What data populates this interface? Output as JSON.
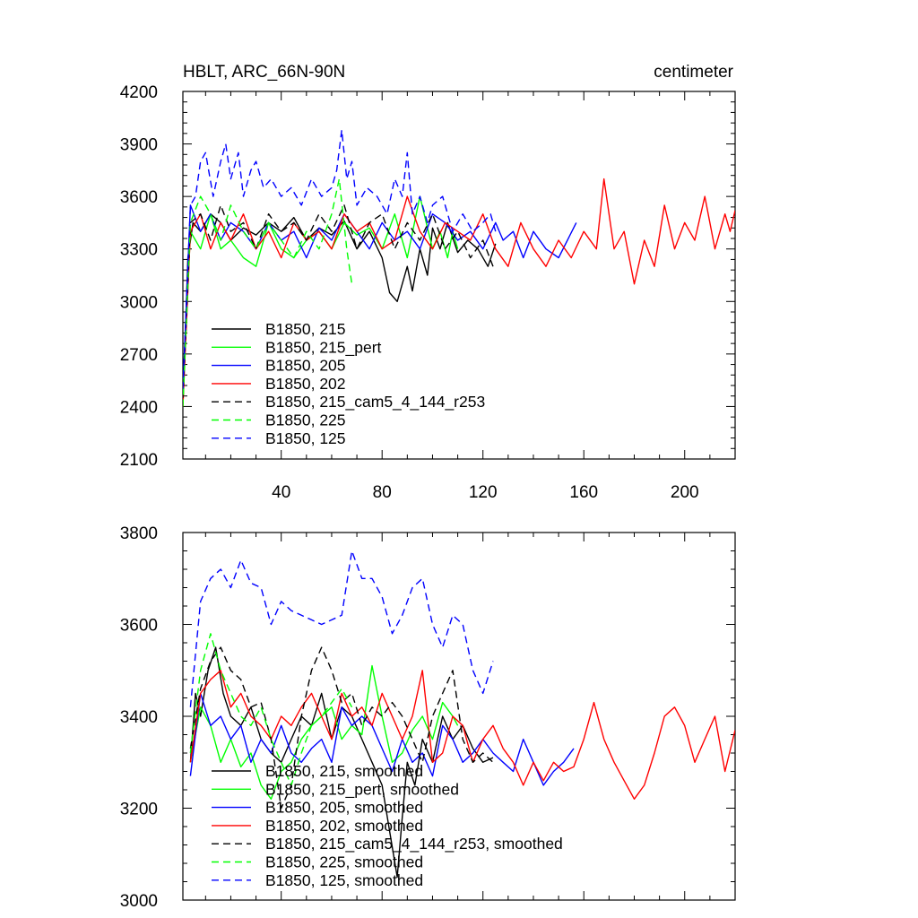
{
  "chart_data": [
    {
      "type": "line",
      "title": "HBLT, ARC_66N-90N",
      "units": "centimeter",
      "xlim": [
        1,
        220
      ],
      "ylim": [
        2100,
        4200
      ],
      "xticks": [
        40,
        80,
        120,
        160,
        200
      ],
      "xtick_labels": [
        "40",
        "80",
        "120",
        "160",
        "200"
      ],
      "yticks": [
        2100,
        2400,
        2700,
        3000,
        3300,
        3600,
        3900,
        4200
      ],
      "ytick_labels": [
        "2100",
        "2400",
        "2700",
        "3000",
        "3300",
        "3600",
        "3900",
        "4200"
      ],
      "grid": false,
      "legend_position": "bottom-left",
      "series": [
        {
          "name": "B1850, 215",
          "color": "#000000",
          "dash": "solid",
          "x": [
            1,
            3,
            5,
            8,
            12,
            16,
            20,
            25,
            30,
            35,
            40,
            45,
            50,
            55,
            60,
            65,
            70,
            75,
            80,
            83,
            86,
            88,
            90,
            92,
            95,
            98,
            100,
            103,
            106,
            110,
            114,
            118,
            122,
            125
          ],
          "y": [
            2400,
            3250,
            3450,
            3400,
            3500,
            3450,
            3350,
            3420,
            3380,
            3450,
            3400,
            3480,
            3350,
            3420,
            3380,
            3460,
            3300,
            3400,
            3250,
            3050,
            3000,
            3100,
            3200,
            3060,
            3300,
            3150,
            3420,
            3300,
            3450,
            3280,
            3350,
            3300,
            3200,
            3330
          ]
        },
        {
          "name": "B1850, 215_pert",
          "color": "#00ff00",
          "dash": "solid",
          "x": [
            1,
            4,
            8,
            12,
            16,
            20,
            25,
            30,
            35,
            40,
            45,
            50,
            55,
            60,
            65,
            70,
            75,
            80,
            85,
            90,
            95,
            100,
            103,
            106,
            108,
            110
          ],
          "y": [
            2450,
            3400,
            3300,
            3500,
            3300,
            3350,
            3250,
            3200,
            3450,
            3300,
            3250,
            3350,
            3400,
            3300,
            3450,
            3380,
            3420,
            3300,
            3500,
            3250,
            3600,
            3300,
            3400,
            3250,
            3400,
            3300
          ]
        },
        {
          "name": "B1850, 205",
          "color": "#0000ff",
          "dash": "solid",
          "x": [
            1,
            4,
            8,
            12,
            16,
            20,
            25,
            30,
            35,
            40,
            45,
            50,
            55,
            60,
            65,
            70,
            75,
            80,
            85,
            90,
            95,
            100,
            105,
            110,
            115,
            120,
            125,
            128,
            132,
            136,
            140,
            145,
            150,
            157
          ],
          "y": [
            2500,
            3550,
            3400,
            3500,
            3350,
            3450,
            3400,
            3300,
            3450,
            3350,
            3400,
            3250,
            3420,
            3350,
            3500,
            3400,
            3300,
            3450,
            3350,
            3400,
            3300,
            3500,
            3450,
            3350,
            3400,
            3300,
            3450,
            3350,
            3400,
            3250,
            3400,
            3300,
            3250,
            3450
          ]
        },
        {
          "name": "B1850, 202",
          "color": "#ff0000",
          "dash": "solid",
          "x": [
            1,
            4,
            8,
            12,
            16,
            20,
            25,
            30,
            35,
            40,
            45,
            50,
            55,
            60,
            65,
            70,
            75,
            80,
            85,
            90,
            95,
            100,
            105,
            110,
            115,
            120,
            125,
            130,
            135,
            140,
            145,
            150,
            155,
            160,
            165,
            168,
            172,
            176,
            180,
            184,
            188,
            192,
            196,
            200,
            204,
            208,
            212,
            216,
            218,
            220
          ],
          "y": [
            2400,
            3400,
            3500,
            3300,
            3450,
            3350,
            3500,
            3300,
            3400,
            3250,
            3450,
            3350,
            3400,
            3300,
            3500,
            3400,
            3450,
            3300,
            3350,
            3600,
            3400,
            3300,
            3450,
            3400,
            3350,
            3500,
            3300,
            3200,
            3450,
            3300,
            3200,
            3350,
            3250,
            3400,
            3300,
            3700,
            3300,
            3400,
            3100,
            3350,
            3200,
            3550,
            3300,
            3450,
            3350,
            3600,
            3300,
            3500,
            3400,
            3520
          ]
        },
        {
          "name": "B1850, 215_cam5_4_144_r253",
          "color": "#000000",
          "dash": "dashed",
          "x": [
            1,
            4,
            8,
            12,
            16,
            20,
            25,
            30,
            35,
            40,
            45,
            50,
            55,
            60,
            65,
            70,
            75,
            80,
            85,
            90,
            95,
            100,
            105,
            110,
            115,
            120,
            124
          ],
          "y": [
            2450,
            3450,
            3500,
            3350,
            3550,
            3400,
            3450,
            3300,
            3500,
            3400,
            3450,
            3350,
            3500,
            3400,
            3550,
            3300,
            3450,
            3500,
            3300,
            3450,
            3350,
            3500,
            3300,
            3400,
            3250,
            3350,
            3200
          ]
        },
        {
          "name": "B1850, 225",
          "color": "#00ff00",
          "dash": "dashed",
          "x": [
            1,
            4,
            8,
            12,
            16,
            20,
            25,
            30,
            35,
            40,
            45,
            50,
            55,
            60,
            63,
            66,
            68
          ],
          "y": [
            2400,
            3450,
            3600,
            3500,
            3350,
            3550,
            3400,
            3300,
            3450,
            3350,
            3250,
            3400,
            3300,
            3500,
            3700,
            3300,
            3100
          ]
        },
        {
          "name": "B1850, 125",
          "color": "#0000ff",
          "dash": "dashed",
          "x": [
            1,
            4,
            6,
            8,
            10,
            13,
            16,
            18,
            20,
            23,
            25,
            28,
            30,
            33,
            36,
            40,
            44,
            48,
            52,
            56,
            60,
            62,
            64,
            66,
            68,
            70,
            74,
            78,
            82,
            85,
            88,
            90,
            92,
            95,
            98,
            100,
            104,
            108,
            112,
            116,
            120,
            123,
            125
          ],
          "y": [
            2500,
            3550,
            3600,
            3800,
            3850,
            3600,
            3800,
            3900,
            3700,
            3850,
            3600,
            3750,
            3800,
            3650,
            3700,
            3600,
            3650,
            3550,
            3700,
            3600,
            3650,
            3750,
            3980,
            3700,
            3800,
            3550,
            3650,
            3600,
            3500,
            3700,
            3600,
            3850,
            3500,
            3600,
            3450,
            3550,
            3600,
            3400,
            3500,
            3400,
            3450,
            3500,
            3400
          ]
        }
      ]
    },
    {
      "type": "line",
      "title": "",
      "xlim": [
        1,
        220
      ],
      "ylim": [
        3000,
        3800
      ],
      "xticks": [
        40,
        80,
        120,
        160,
        200
      ],
      "yticks": [
        3000,
        3200,
        3400,
        3600,
        3800
      ],
      "ytick_labels": [
        "3000",
        "3200",
        "3400",
        "3600",
        "3800"
      ],
      "grid": false,
      "legend_position": "bottom-left",
      "series": [
        {
          "name": "B1850, 215, smoothed",
          "color": "#000000",
          "dash": "solid",
          "x": [
            4,
            6,
            8,
            11,
            14,
            17,
            20,
            24,
            28,
            32,
            36,
            40,
            44,
            48,
            52,
            56,
            60,
            64,
            68,
            72,
            76,
            80,
            83,
            86,
            88,
            90,
            93,
            96,
            100,
            104,
            108,
            112,
            116,
            120,
            124
          ],
          "y": [
            3300,
            3450,
            3400,
            3500,
            3550,
            3450,
            3400,
            3380,
            3420,
            3350,
            3320,
            3300,
            3350,
            3400,
            3380,
            3450,
            3350,
            3420,
            3400,
            3350,
            3300,
            3250,
            3150,
            3050,
            3180,
            3300,
            3250,
            3350,
            3300,
            3400,
            3350,
            3380,
            3330,
            3300,
            3310
          ]
        },
        {
          "name": "B1850, 215_pert, smoothed",
          "color": "#00ff00",
          "dash": "solid",
          "x": [
            4,
            8,
            12,
            16,
            20,
            24,
            28,
            32,
            36,
            40,
            44,
            48,
            52,
            56,
            60,
            64,
            68,
            72,
            76,
            80,
            84,
            88,
            92,
            96,
            100,
            104,
            108,
            110
          ],
          "y": [
            3300,
            3420,
            3380,
            3300,
            3350,
            3290,
            3320,
            3250,
            3220,
            3280,
            3300,
            3350,
            3380,
            3400,
            3420,
            3350,
            3380,
            3360,
            3510,
            3400,
            3300,
            3320,
            3370,
            3400,
            3350,
            3430,
            3400,
            3380
          ]
        },
        {
          "name": "B1850, 205, smoothed",
          "color": "#0000ff",
          "dash": "solid",
          "x": [
            4,
            8,
            12,
            16,
            20,
            24,
            28,
            32,
            36,
            40,
            44,
            48,
            52,
            56,
            60,
            64,
            68,
            72,
            76,
            80,
            84,
            88,
            92,
            96,
            100,
            104,
            108,
            112,
            116,
            120,
            124,
            128,
            132,
            136,
            140,
            144,
            148,
            152,
            156
          ],
          "y": [
            3270,
            3450,
            3380,
            3400,
            3350,
            3380,
            3300,
            3350,
            3320,
            3380,
            3320,
            3300,
            3330,
            3350,
            3300,
            3420,
            3380,
            3400,
            3380,
            3330,
            3280,
            3350,
            3300,
            3320,
            3270,
            3380,
            3350,
            3300,
            3320,
            3350,
            3320,
            3300,
            3280,
            3350,
            3300,
            3250,
            3280,
            3300,
            3330
          ]
        },
        {
          "name": "B1850, 202, smoothed",
          "color": "#ff0000",
          "dash": "solid",
          "x": [
            4,
            8,
            12,
            16,
            20,
            24,
            28,
            32,
            36,
            40,
            44,
            48,
            52,
            56,
            60,
            64,
            68,
            72,
            76,
            80,
            84,
            88,
            92,
            96,
            100,
            104,
            108,
            112,
            116,
            120,
            124,
            128,
            132,
            136,
            140,
            144,
            148,
            152,
            156,
            160,
            164,
            168,
            172,
            176,
            180,
            184,
            188,
            192,
            196,
            200,
            204,
            208,
            212,
            216,
            220
          ],
          "y": [
            3300,
            3450,
            3480,
            3500,
            3420,
            3450,
            3400,
            3380,
            3350,
            3400,
            3380,
            3420,
            3450,
            3400,
            3350,
            3450,
            3400,
            3420,
            3380,
            3450,
            3400,
            3350,
            3400,
            3500,
            3300,
            3320,
            3400,
            3380,
            3300,
            3350,
            3380,
            3330,
            3300,
            3250,
            3300,
            3260,
            3300,
            3280,
            3290,
            3350,
            3430,
            3350,
            3300,
            3260,
            3220,
            3250,
            3320,
            3400,
            3420,
            3380,
            3300,
            3350,
            3400,
            3280,
            3370
          ]
        },
        {
          "name": "B1850, 215_cam5_4_144_r253, smoothed",
          "color": "#000000",
          "dash": "dashed",
          "x": [
            4,
            8,
            12,
            16,
            20,
            24,
            28,
            32,
            36,
            40,
            44,
            48,
            52,
            56,
            60,
            64,
            68,
            72,
            76,
            80,
            84,
            88,
            92,
            96,
            100,
            104,
            108,
            112,
            116,
            120,
            124
          ],
          "y": [
            3330,
            3460,
            3520,
            3550,
            3500,
            3480,
            3420,
            3430,
            3350,
            3200,
            3250,
            3400,
            3500,
            3550,
            3500,
            3430,
            3450,
            3380,
            3420,
            3400,
            3430,
            3400,
            3350,
            3300,
            3400,
            3450,
            3500,
            3350,
            3300,
            3320,
            3300
          ]
        },
        {
          "name": "B1850, 225, smoothed",
          "color": "#00ff00",
          "dash": "dashed",
          "x": [
            4,
            8,
            12,
            16,
            20,
            24,
            28,
            32,
            36,
            40,
            44,
            48,
            52,
            56,
            60,
            64,
            68
          ],
          "y": [
            3320,
            3500,
            3580,
            3500,
            3450,
            3400,
            3380,
            3420,
            3350,
            3300,
            3250,
            3320,
            3380,
            3400,
            3430,
            3460,
            3420
          ]
        },
        {
          "name": "B1850, 125, smoothed",
          "color": "#0000ff",
          "dash": "dashed",
          "x": [
            4,
            8,
            12,
            16,
            20,
            24,
            28,
            32,
            36,
            40,
            44,
            48,
            52,
            56,
            60,
            64,
            68,
            72,
            76,
            80,
            84,
            88,
            92,
            96,
            100,
            104,
            108,
            112,
            116,
            120,
            124
          ],
          "y": [
            3420,
            3650,
            3700,
            3720,
            3680,
            3740,
            3690,
            3680,
            3600,
            3650,
            3630,
            3620,
            3610,
            3600,
            3610,
            3620,
            3760,
            3700,
            3700,
            3660,
            3580,
            3620,
            3680,
            3700,
            3600,
            3550,
            3620,
            3600,
            3500,
            3450,
            3520
          ]
        }
      ]
    }
  ]
}
